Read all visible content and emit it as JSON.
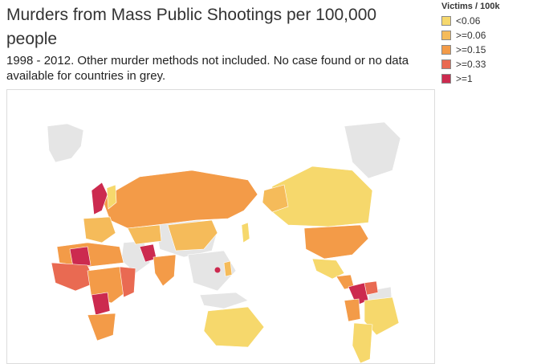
{
  "title": "Murders from Mass Public Shootings per 100,000 people",
  "subtitle": "1998 - 2012.  Other murder methods not included.  No case found or no data available for countries in grey.",
  "legend": {
    "title": "Victims / 100k",
    "items": [
      {
        "label": "<0.06",
        "color": "#f6d86c"
      },
      {
        "label": ">=0.06",
        "color": "#f5bb5a"
      },
      {
        "label": ">=0.15",
        "color": "#f39b48"
      },
      {
        "label": ">=0.33",
        "color": "#e96a52"
      },
      {
        "label": ">=1",
        "color": "#cc2a4f"
      }
    ]
  },
  "colors": {
    "no_data": "#e5e5e5",
    "border": "#7a6a5a"
  }
}
